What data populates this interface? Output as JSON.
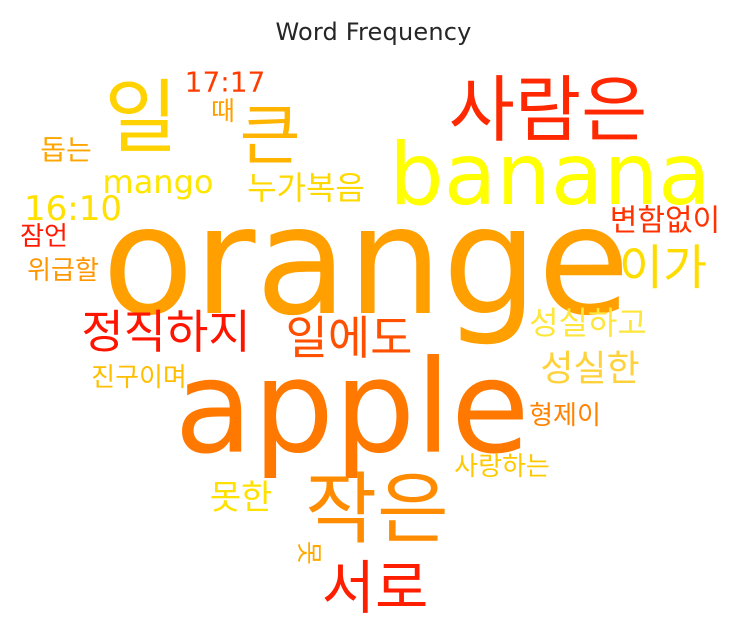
{
  "chart_data": {
    "type": "wordcloud",
    "title": "Word Frequency",
    "shape": "heart",
    "colormap": "autumn",
    "words": [
      {
        "text": "orange",
        "color": "#ffa000"
      },
      {
        "text": "apple",
        "color": "#ff7800"
      },
      {
        "text": "banana",
        "color": "#ffff00"
      },
      {
        "text": "사람은",
        "color": "#ff2800"
      },
      {
        "text": "일",
        "color": "#ffd200"
      },
      {
        "text": "큰",
        "color": "#ffb400"
      },
      {
        "text": "작은",
        "color": "#ff8c00"
      },
      {
        "text": "서로",
        "color": "#ff1e00"
      },
      {
        "text": "정직하지",
        "color": "#ff1400"
      },
      {
        "text": "일에도",
        "color": "#ff5000"
      },
      {
        "text": "이가",
        "color": "#ffdc00"
      },
      {
        "text": "성실하고",
        "color": "#ffe63c"
      },
      {
        "text": "성실한",
        "color": "#ffd23c"
      },
      {
        "text": "mango",
        "color": "#ffe600"
      },
      {
        "text": "누가복음",
        "color": "#ffd800"
      },
      {
        "text": "16:10",
        "color": "#ffe000"
      },
      {
        "text": "변함없이",
        "color": "#ff3200"
      },
      {
        "text": "17:17",
        "color": "#ff3c00"
      },
      {
        "text": "때",
        "color": "#ffa000"
      },
      {
        "text": "돕는",
        "color": "#ffa500"
      },
      {
        "text": "잠언",
        "color": "#ff1900"
      },
      {
        "text": "위급할",
        "color": "#ff9600"
      },
      {
        "text": "진구이며",
        "color": "#ffbe00"
      },
      {
        "text": "형제이",
        "color": "#ff8200"
      },
      {
        "text": "사랑하는",
        "color": "#ffc800"
      },
      {
        "text": "못한",
        "color": "#ffe100"
      },
      {
        "text": "못",
        "color": "#ffaa00"
      }
    ]
  }
}
